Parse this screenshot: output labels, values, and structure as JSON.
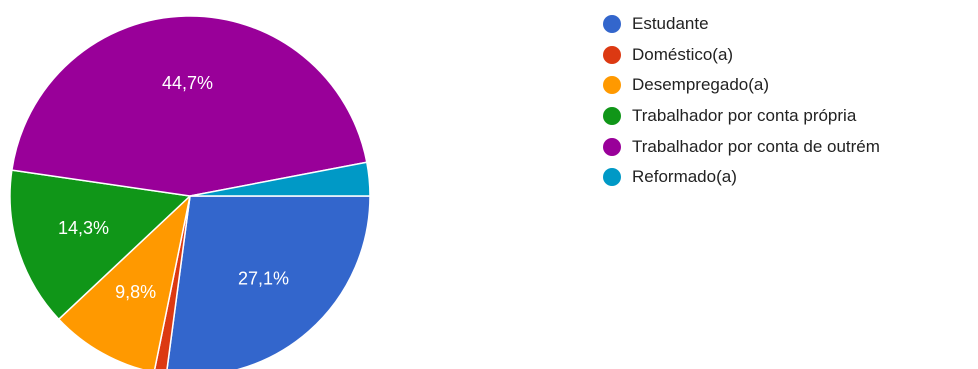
{
  "chart_data": {
    "type": "pie",
    "slices": [
      {
        "label": "Estudante",
        "value": 27.1,
        "color": "#3366CC",
        "data_label": "27,1%"
      },
      {
        "label": "Doméstico(a)",
        "value": 1.1,
        "color": "#DC3912",
        "data_label": ""
      },
      {
        "label": "Desempregado(a)",
        "value": 9.8,
        "color": "#FF9900",
        "data_label": "9,8%"
      },
      {
        "label": "Trabalhador por conta própria",
        "value": 14.3,
        "color": "#109618",
        "data_label": "14,3%"
      },
      {
        "label": "Trabalhador por conta de outrém",
        "value": 44.7,
        "color": "#990099",
        "data_label": "44,7%"
      },
      {
        "label": "Reformado(a)",
        "value": 3.0,
        "color": "#0099C6",
        "data_label": ""
      }
    ],
    "legend_position": "right",
    "start_direction": "right, clockwise"
  },
  "legend": {
    "items": [
      {
        "label": "Estudante",
        "color": "#3366CC"
      },
      {
        "label": "Doméstico(a)",
        "color": "#DC3912"
      },
      {
        "label": "Desempregado(a)",
        "color": "#FF9900"
      },
      {
        "label": "Trabalhador por conta própria",
        "color": "#109618"
      },
      {
        "label": "Trabalhador por conta de outrém",
        "color": "#990099"
      },
      {
        "label": "Reformado(a)",
        "color": "#0099C6"
      }
    ]
  }
}
